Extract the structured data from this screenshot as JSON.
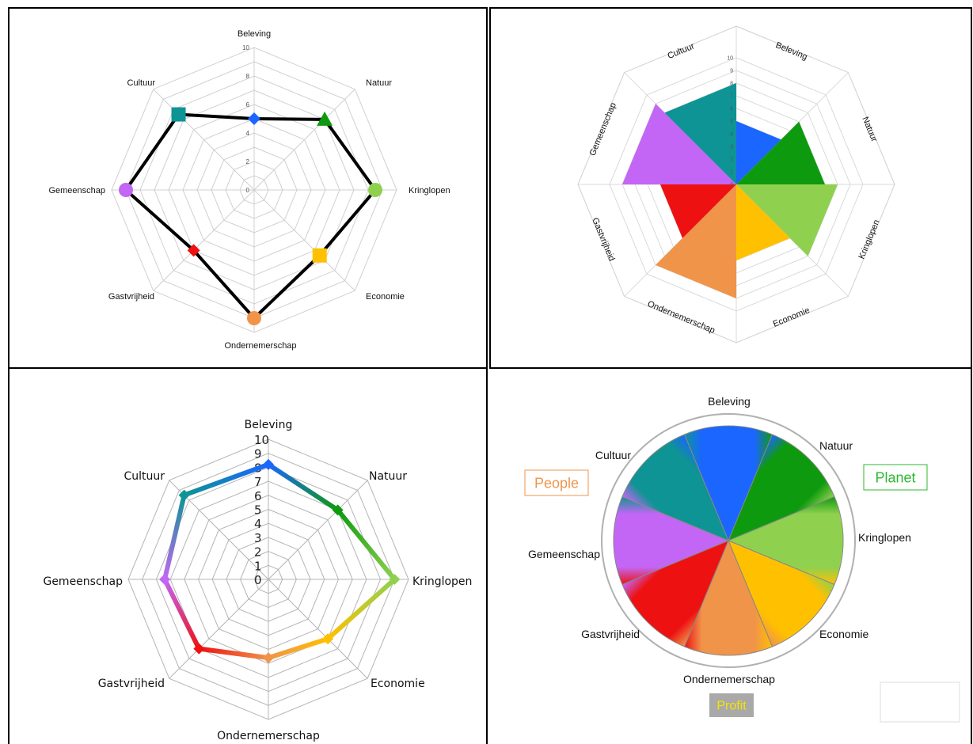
{
  "categories": [
    "Beleving",
    "Natuur",
    "Kringlopen",
    "Economie",
    "Ondernemerschap",
    "Gastvrijheid",
    "Gemeenschap",
    "Cultuur"
  ],
  "colors": {
    "Beleving": "#1a66ff",
    "Natuur": "#0e9a0e",
    "Kringlopen": "#8fd14f",
    "Economie": "#ffc000",
    "Ondernemerschap": "#f0944a",
    "Gastvrijheid": "#ee1111",
    "Gemeenschap": "#c366f5",
    "Cultuur": "#0e9494"
  },
  "chart_data": [
    {
      "type": "radar",
      "variant": "line with colored markers",
      "categories": [
        "Beleving",
        "Natuur",
        "Kringlopen",
        "Economie",
        "Ondernemerschap",
        "Gastvrijheid",
        "Gemeenschap",
        "Cultuur"
      ],
      "values": [
        5,
        7,
        8.5,
        6.5,
        9,
        6,
        9,
        7.5
      ],
      "marker_shapes": [
        "diamond",
        "triangle",
        "circle",
        "square",
        "circle",
        "diamond",
        "circle",
        "square"
      ],
      "rticks": [
        "0",
        "2",
        "4",
        "6",
        "8",
        "10"
      ],
      "rlim": [
        0,
        10
      ],
      "grid": true
    },
    {
      "type": "radar",
      "variant": "filled sectors",
      "categories": [
        "Beleving",
        "Natuur",
        "Kringlopen",
        "Economie",
        "Ondernemerschap",
        "Gastvrijheid",
        "Gemeenschap",
        "Cultuur"
      ],
      "values": [
        5,
        7,
        8,
        6,
        9,
        6,
        9,
        8
      ],
      "rticks": [
        "0",
        "1",
        "2",
        "3",
        "4",
        "5",
        "6",
        "7",
        "8",
        "9",
        "10"
      ],
      "rlim": [
        0,
        10
      ],
      "grid": true
    },
    {
      "type": "radar",
      "variant": "gradient line",
      "categories": [
        "Beleving",
        "Natuur",
        "Kringlopen",
        "Economie",
        "Ondernemerschap",
        "Gastvrijheid",
        "Gemeenschap",
        "Cultuur"
      ],
      "values": [
        8.2,
        7,
        9,
        6,
        5.6,
        7,
        7.4,
        8.5
      ],
      "rticks": [
        "0",
        "1",
        "2",
        "3",
        "4",
        "5",
        "6",
        "7",
        "8",
        "9",
        "10"
      ],
      "rlim": [
        0,
        10
      ],
      "grid": true
    },
    {
      "type": "pie",
      "variant": "equal sectors, blended colors",
      "categories": [
        "Beleving",
        "Natuur",
        "Kringlopen",
        "Economie",
        "Ondernemerschap",
        "Gastvrijheid",
        "Gemeenschap",
        "Cultuur"
      ],
      "values": [
        1,
        1,
        1,
        1,
        1,
        1,
        1,
        1
      ],
      "groups": [
        {
          "label": "People",
          "color": "#f0944a"
        },
        {
          "label": "Planet",
          "color": "#2db82d"
        },
        {
          "label": "Profit",
          "color": "#f5e400"
        }
      ]
    }
  ]
}
